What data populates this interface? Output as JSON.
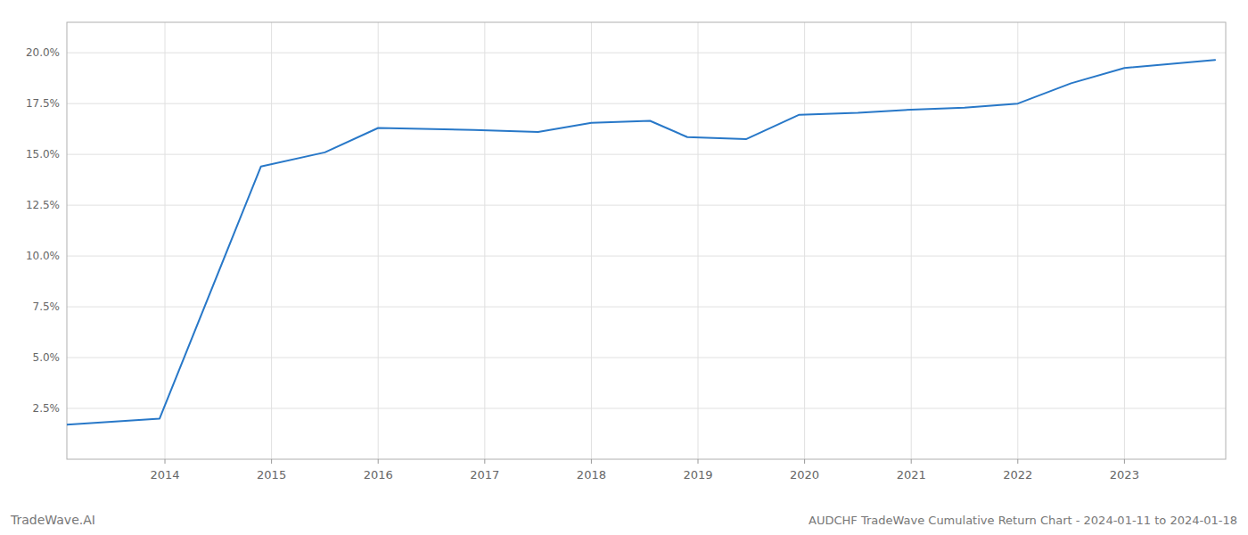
{
  "chart_data": {
    "type": "line",
    "title": "AUDCHF TradeWave Cumulative Return Chart - 2024-01-11 to 2024-01-18",
    "annotations": [
      "TradeWave.AI"
    ],
    "x": [
      2013.08,
      2013.95,
      2014.9,
      2015.5,
      2016.0,
      2016.9,
      2017.5,
      2018.0,
      2018.55,
      2018.9,
      2019.45,
      2019.95,
      2020.5,
      2021.0,
      2021.5,
      2022.0,
      2022.5,
      2023.0,
      2023.85
    ],
    "values": [
      1.7,
      2.0,
      14.4,
      15.1,
      16.3,
      16.2,
      16.1,
      16.55,
      16.65,
      15.85,
      15.75,
      16.95,
      17.05,
      17.2,
      17.3,
      17.5,
      18.5,
      19.25,
      19.65
    ],
    "color": "#2878c8",
    "xlim": [
      2013.08,
      2023.95
    ],
    "ylim": [
      0.0,
      21.5
    ],
    "xticks": [
      2014,
      2015,
      2016,
      2017,
      2018,
      2019,
      2020,
      2021,
      2022,
      2023
    ],
    "yticks": [
      {
        "value": 2.5,
        "label": "2.5%"
      },
      {
        "value": 5.0,
        "label": "5.0%"
      },
      {
        "value": 7.5,
        "label": "7.5%"
      },
      {
        "value": 10.0,
        "label": "10.0%"
      },
      {
        "value": 12.5,
        "label": "12.5%"
      },
      {
        "value": 15.0,
        "label": "15.0%"
      },
      {
        "value": 17.5,
        "label": "17.5%"
      },
      {
        "value": 20.0,
        "label": "20.0%"
      }
    ],
    "grid": true
  }
}
